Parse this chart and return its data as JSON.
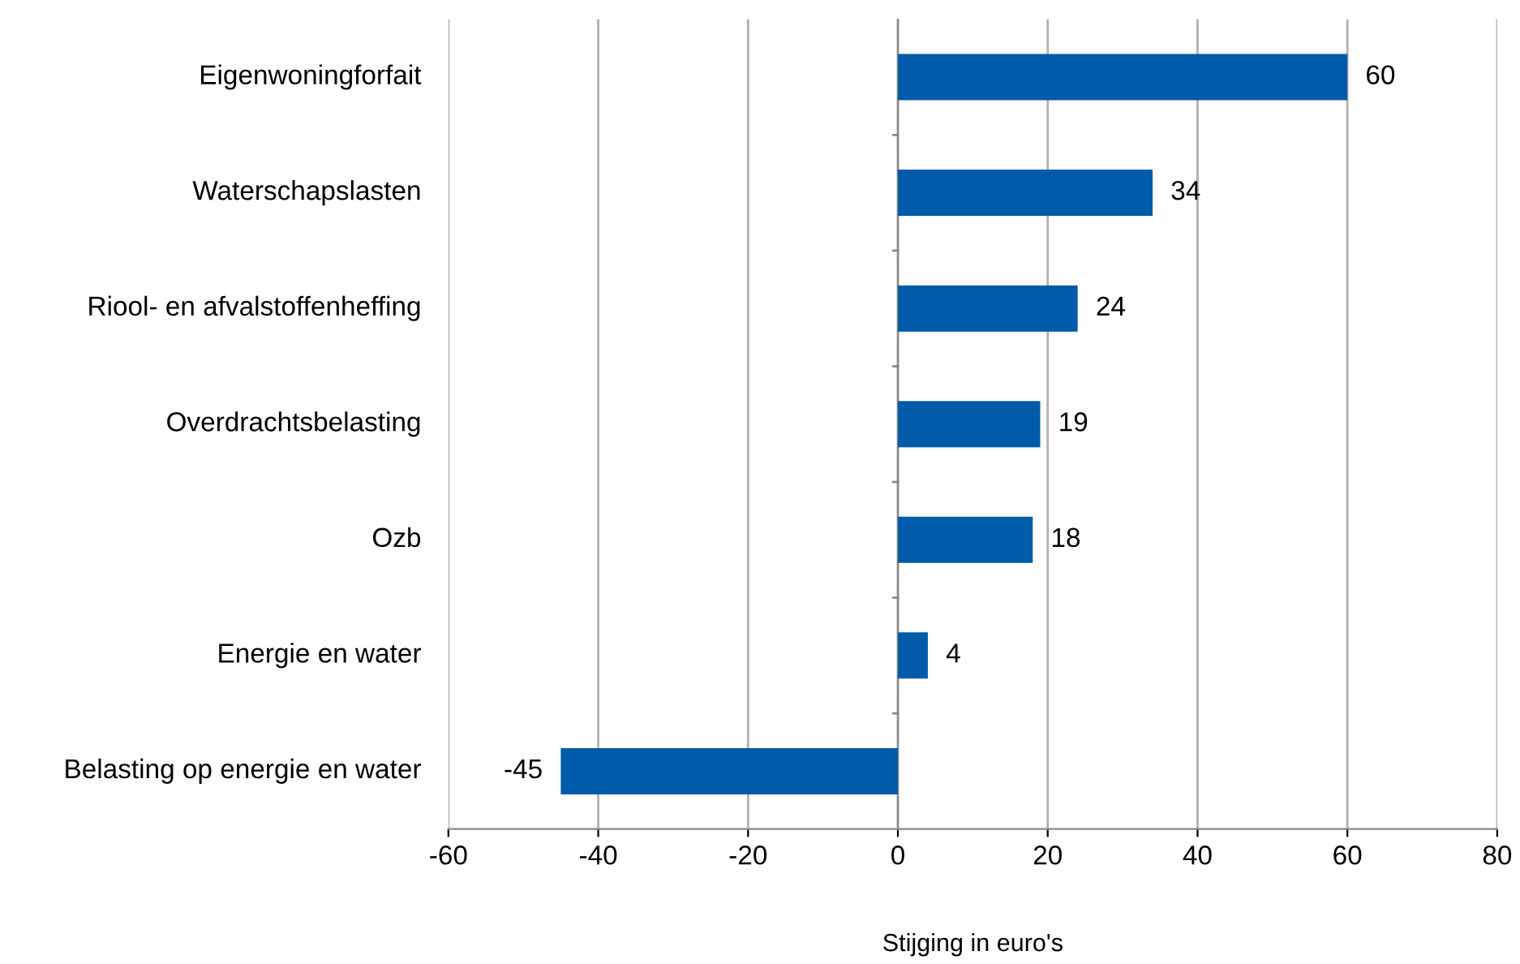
{
  "chart_data": {
    "type": "bar",
    "orientation": "horizontal",
    "xlabel": "Stijging in euro's",
    "categories": [
      "Eigenwoningforfait",
      "Waterschapslasten",
      "Riool- en afvalstoffenheffing",
      "Overdrachtsbelasting",
      "Ozb",
      "Energie en water",
      "Belasting op energie en water"
    ],
    "values": [
      60,
      34,
      24,
      19,
      18,
      4,
      -45
    ],
    "color": "#005baa",
    "xlim": [
      -60,
      80
    ],
    "xticks": [
      -60,
      -40,
      -20,
      0,
      20,
      40,
      60,
      80
    ],
    "grid": "x",
    "data_labels": true
  }
}
